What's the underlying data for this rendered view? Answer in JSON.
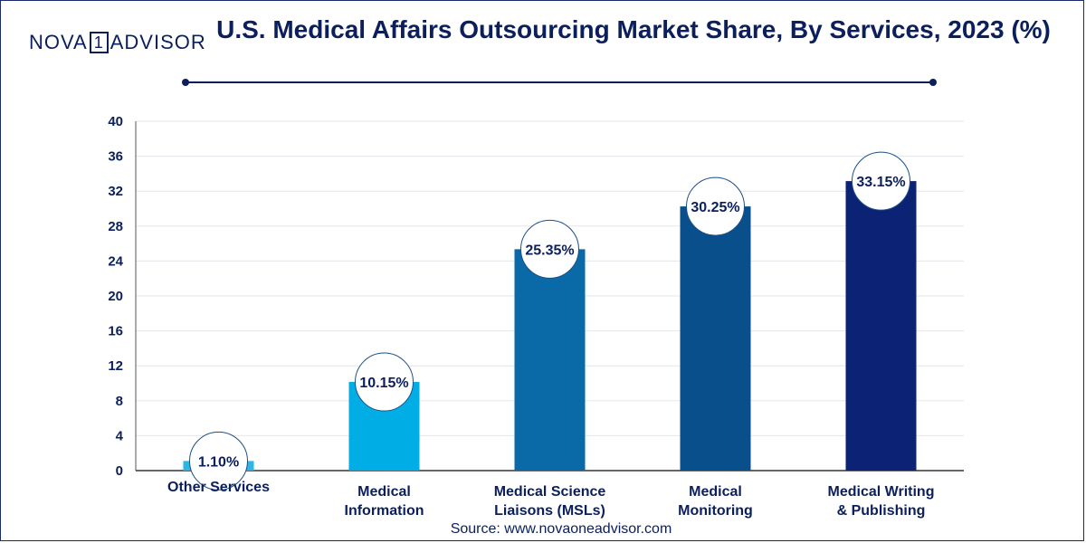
{
  "brand": {
    "part1": "NOVA",
    "part2": "1",
    "part3": "ADVISOR"
  },
  "source_text": "Source: www.novaoneadvisor.com",
  "colors": {
    "text": "#0b1f5c",
    "grid": "#e3e6ec",
    "bars": [
      "#29b6e8",
      "#00aee5",
      "#0a6aa8",
      "#084f8c",
      "#0b2275"
    ]
  },
  "chart_data": {
    "type": "bar",
    "title": "U.S. Medical Affairs Outsourcing Market Share, By Services, 2023 (%)",
    "xlabel": "",
    "ylabel": "",
    "ylim": [
      0,
      40
    ],
    "yticks": [
      0,
      4,
      8,
      12,
      16,
      20,
      24,
      28,
      32,
      36,
      40
    ],
    "grid": true,
    "categories": [
      [
        "Other Services"
      ],
      [
        "Medical",
        "Information"
      ],
      [
        "Medical Science",
        "Liaisons (MSLs)"
      ],
      [
        "Medical",
        "Monitoring"
      ],
      [
        "Medical Writing",
        "& Publishing"
      ]
    ],
    "values": [
      1.1,
      10.15,
      25.35,
      30.25,
      33.15
    ],
    "data_labels": [
      "1.10%",
      "10.15%",
      "25.35%",
      "30.25%",
      "33.15%"
    ]
  }
}
